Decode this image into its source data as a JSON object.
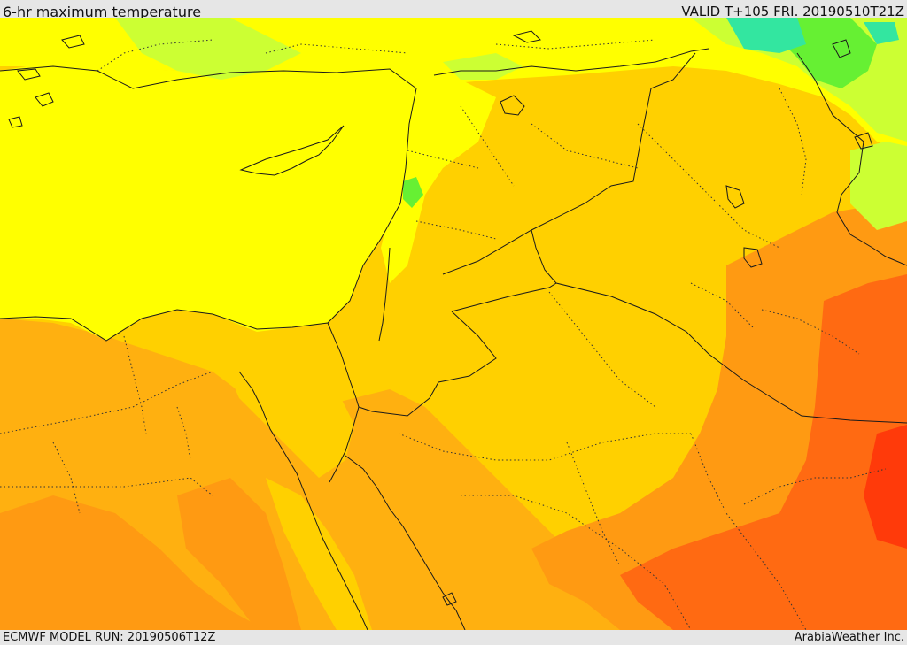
{
  "header": {
    "title": "6-hr maximum temperature",
    "valid": "VALID T+105 FRI. 20190510T21Z"
  },
  "footer": {
    "model_run": "ECMWF MODEL RUN: 20190506T12Z",
    "provider": "ArabiaWeather Inc."
  },
  "colors": {
    "very_hot": "#ff3a0a",
    "hot": "#ff6a12",
    "warm_orange": "#ff9a12",
    "orange": "#ffb010",
    "light_orange": "#ffd000",
    "yellow": "#ffff00",
    "light_green": "#ccff33",
    "green": "#66f033",
    "cyan": "#33e6a0",
    "border": "#1a1a1a"
  }
}
